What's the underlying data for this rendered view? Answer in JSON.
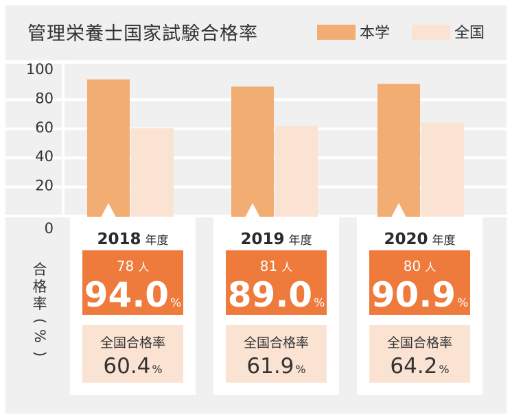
{
  "chart_data": {
    "type": "bar",
    "title": "管理栄養士国家試験合格率",
    "categories": [
      "2018",
      "2019",
      "2020"
    ],
    "category_suffix": "年度",
    "ylabel": "合格率（%）",
    "ylim": [
      0,
      100
    ],
    "yticks": [
      0,
      20,
      40,
      60,
      80,
      100
    ],
    "grid": true,
    "legend_position": "top-right",
    "series": [
      {
        "name": "本学",
        "color": "#f2ad72",
        "values": [
          94.0,
          89.0,
          90.9
        ]
      },
      {
        "name": "全国",
        "color": "#fbe3d3",
        "values": [
          60.4,
          61.9,
          64.2
        ]
      }
    ],
    "cards": [
      {
        "year": "2018",
        "count": "78",
        "rate": "94.0",
        "national_rate": "60.4"
      },
      {
        "year": "2019",
        "count": "81",
        "rate": "89.0",
        "national_rate": "61.9"
      },
      {
        "year": "2020",
        "count": "80",
        "rate": "90.9",
        "national_rate": "64.2"
      }
    ],
    "count_unit": "人",
    "percent_unit": "%",
    "national_label": "全国合格率",
    "colors": {
      "panel_bg": "#f0f0f0",
      "rate_box": "#ee7a3c",
      "national_box": "#fbe3d3"
    }
  }
}
